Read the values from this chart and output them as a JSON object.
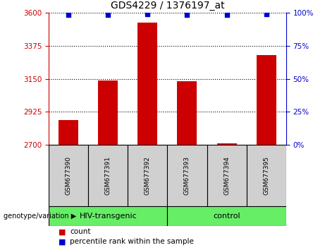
{
  "title": "GDS4229 / 1376197_at",
  "samples": [
    "GSM677390",
    "GSM677391",
    "GSM677392",
    "GSM677393",
    "GSM677394",
    "GSM677395"
  ],
  "counts": [
    2870,
    3140,
    3530,
    3135,
    2710,
    3310
  ],
  "percentiles": [
    98,
    98,
    99,
    98,
    98,
    99
  ],
  "ylim_left": [
    2700,
    3600
  ],
  "yticks_left": [
    2700,
    2925,
    3150,
    3375,
    3600
  ],
  "ylim_right": [
    0,
    100
  ],
  "yticks_right": [
    0,
    25,
    50,
    75,
    100
  ],
  "left_axis_color": "#cc0000",
  "right_axis_color": "#0000cc",
  "bar_color": "#cc0000",
  "dot_color": "#0000cc",
  "group1_label": "HIV-transgenic",
  "group2_label": "control",
  "group1_indices": [
    0,
    1,
    2
  ],
  "group2_indices": [
    3,
    4,
    5
  ],
  "group_color": "#66ee66",
  "genotype_label": "genotype/variation",
  "legend_count": "count",
  "legend_percentile": "percentile rank within the sample",
  "box_color": "#d0d0d0",
  "fig_width": 4.61,
  "fig_height": 3.54,
  "dpi": 100
}
